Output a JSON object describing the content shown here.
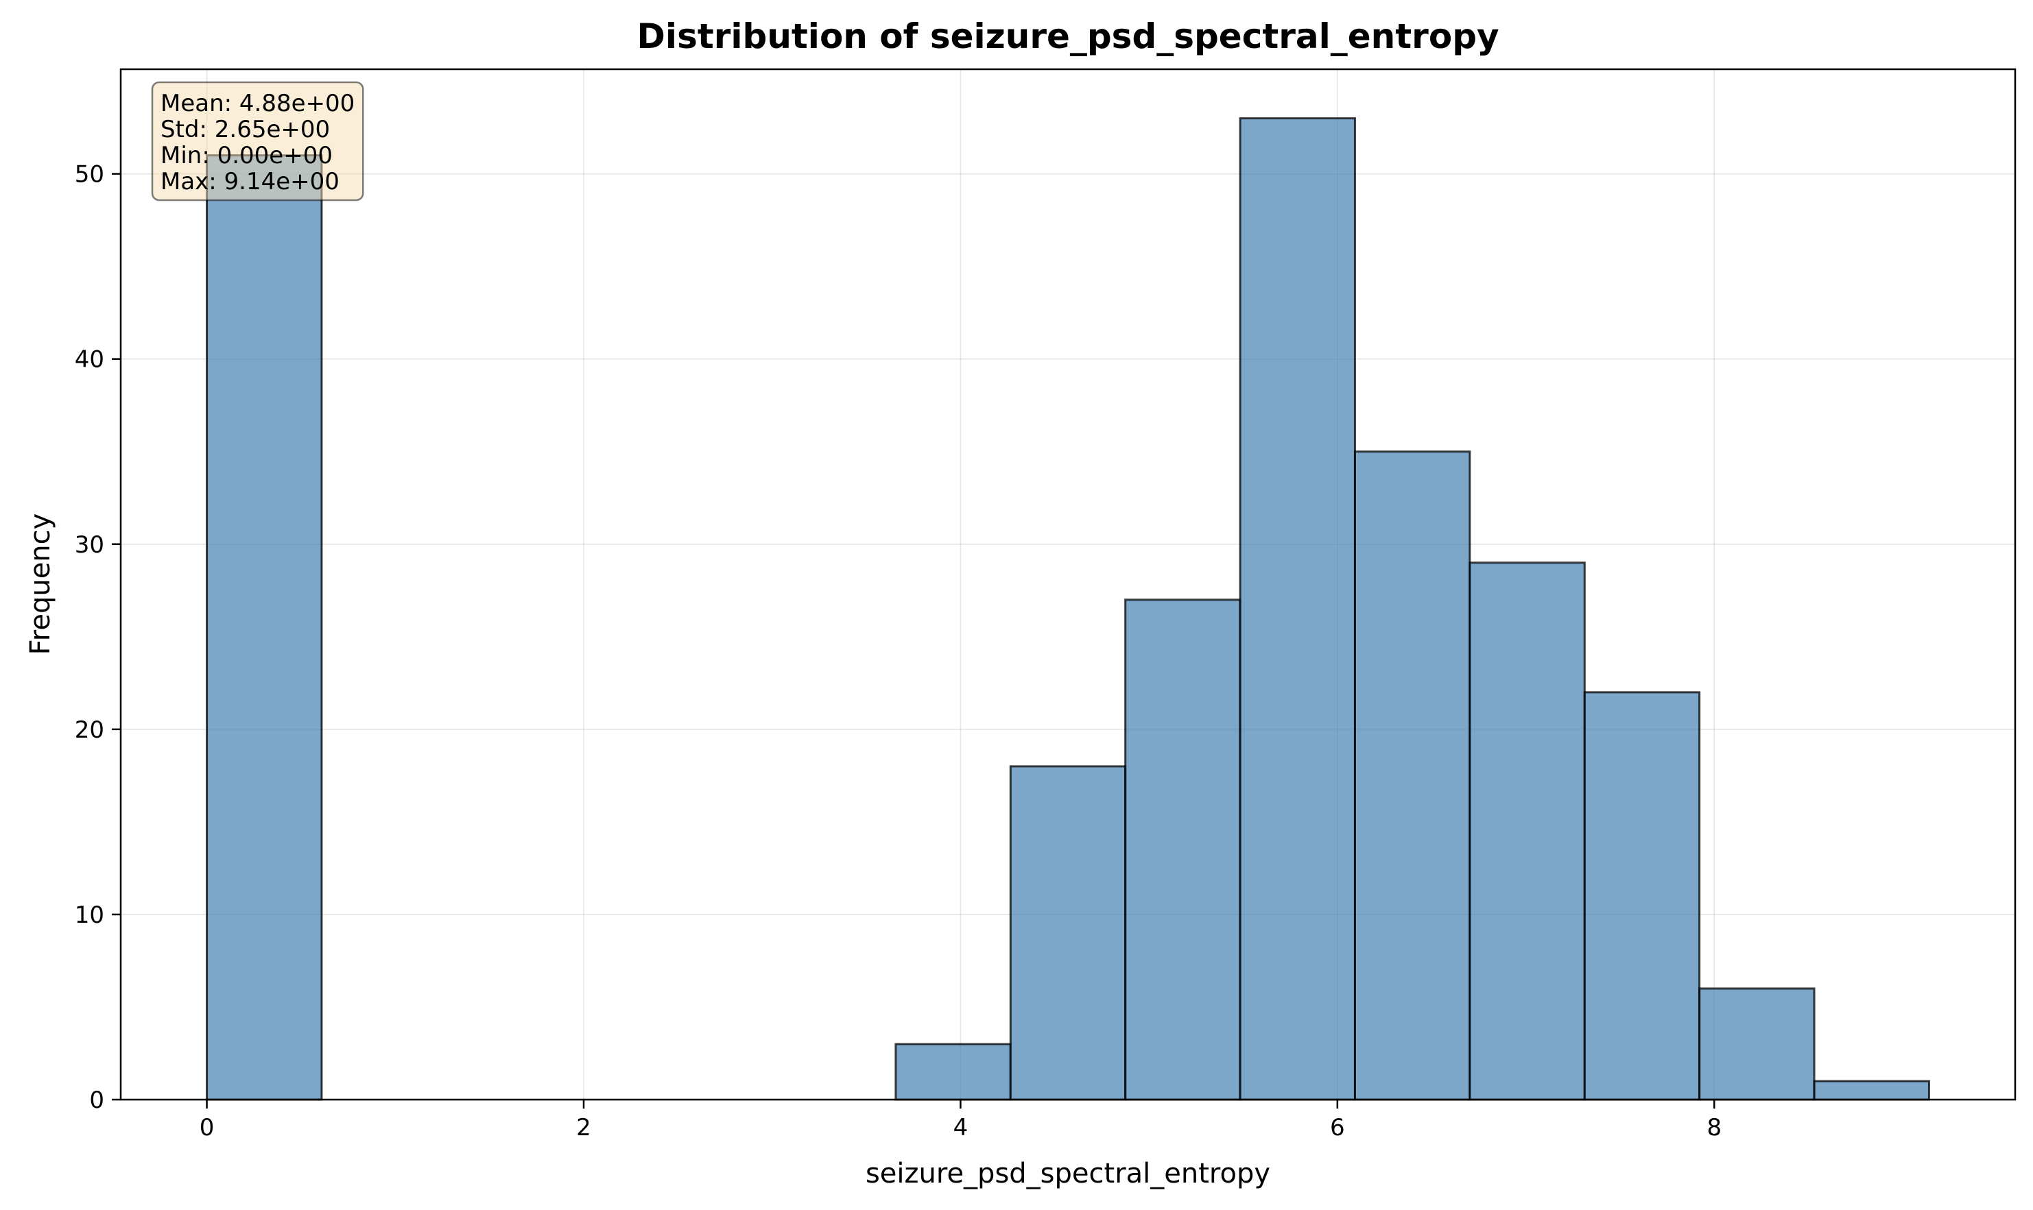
{
  "chart_data": {
    "type": "bar",
    "title": "Distribution of seizure_psd_spectral_entropy",
    "xlabel": "seizure_psd_spectral_entropy",
    "ylabel": "Frequency",
    "xlim": [
      -0.457,
      9.597
    ],
    "ylim": [
      0,
      55.65
    ],
    "xticks": [
      0,
      2,
      4,
      6,
      8
    ],
    "yticks": [
      0,
      10,
      20,
      30,
      40,
      50
    ],
    "grid": true,
    "bin_edges": [
      0.0,
      0.6093,
      1.2187,
      1.828,
      2.4373,
      3.0467,
      3.656,
      4.2653,
      4.8747,
      5.484,
      6.0933,
      6.7027,
      7.312,
      7.9213,
      8.5307,
      9.14
    ],
    "values": [
      51,
      0,
      0,
      0,
      0,
      0,
      3,
      18,
      27,
      53,
      35,
      29,
      22,
      6,
      1
    ],
    "stats_box": {
      "lines": [
        "Mean: 4.88e+00",
        "Std: 2.65e+00",
        "Min: 0.00e+00",
        "Max: 9.14e+00"
      ],
      "placement": "top-left"
    },
    "colors": {
      "bar": "#4682b4",
      "stats_box": "#f5deb3"
    }
  }
}
